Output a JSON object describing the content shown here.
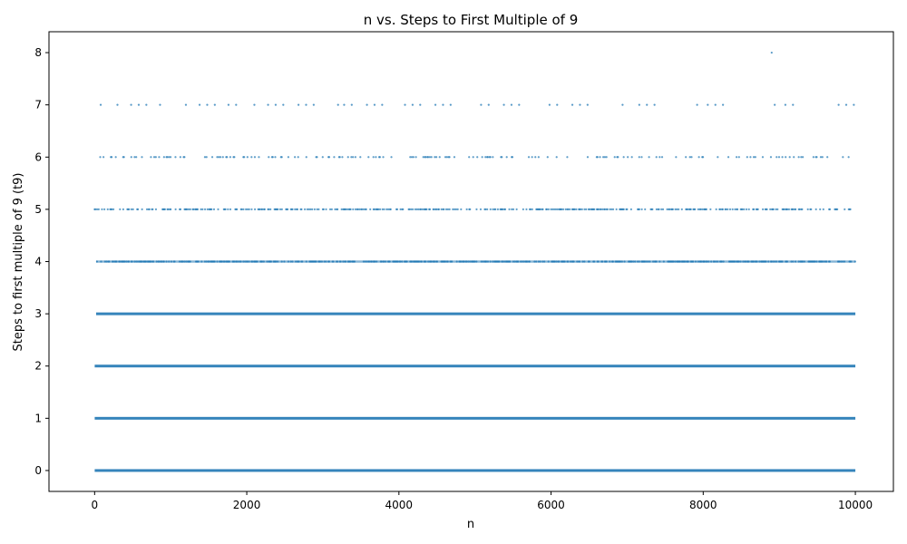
{
  "chart_data": {
    "type": "scatter",
    "title": "n vs. Steps to First Multiple of 9",
    "xlabel": "n",
    "ylabel": "Steps to first multiple of 9 (t9)",
    "xlim": [
      -600,
      10500
    ],
    "ylim": [
      -0.4,
      8.4
    ],
    "xticks": [
      0,
      2000,
      4000,
      6000,
      8000,
      10000
    ],
    "yticks": [
      0,
      1,
      2,
      3,
      4,
      5,
      6,
      7,
      8
    ],
    "xtick_labels": [
      "0",
      "2000",
      "4000",
      "6000",
      "8000",
      "10000"
    ],
    "ytick_labels": [
      "0",
      "1",
      "2",
      "3",
      "4",
      "5",
      "6",
      "7",
      "8"
    ],
    "grid": false,
    "point_color": "#1f77b4",
    "x_range": [
      1,
      10000
    ],
    "levels": [
      {
        "y": 0,
        "x_start": 1,
        "x_end": 10000,
        "density": "continuous"
      },
      {
        "y": 1,
        "x_start": 1,
        "x_end": 10000,
        "density": "continuous"
      },
      {
        "y": 2,
        "x_start": 1,
        "x_end": 10000,
        "density": "continuous"
      },
      {
        "y": 3,
        "x_start": 20,
        "x_end": 10000,
        "density": "continuous"
      },
      {
        "y": 4,
        "x_start": 20,
        "x_end": 10000,
        "density": "near-continuous"
      },
      {
        "y": 5,
        "x_start": 0,
        "x_end": 9950,
        "density": "frequent"
      },
      {
        "y": 6,
        "x_start": 20,
        "x_end": 9980,
        "density": "moderate"
      },
      {
        "y": 7,
        "x_start": 80,
        "x_end": 10000,
        "density": "sparse"
      }
    ],
    "points_level_7": [
      80,
      300,
      480,
      580,
      680,
      860,
      1200,
      1380,
      1480,
      1580,
      1760,
      1860,
      2100,
      2280,
      2380,
      2480,
      2680,
      2780,
      2880,
      3200,
      3280,
      3380,
      3580,
      3680,
      3780,
      4080,
      4180,
      4280,
      4480,
      4580,
      4680,
      5080,
      5180,
      5380,
      5480,
      5580,
      5980,
      6080,
      6280,
      6380,
      6480,
      6940,
      7160,
      7260,
      7360,
      7920,
      8060,
      8160,
      8260,
      8940,
      9080,
      9180,
      9780,
      9880,
      9980
    ],
    "points_level_8": [
      8900
    ]
  }
}
